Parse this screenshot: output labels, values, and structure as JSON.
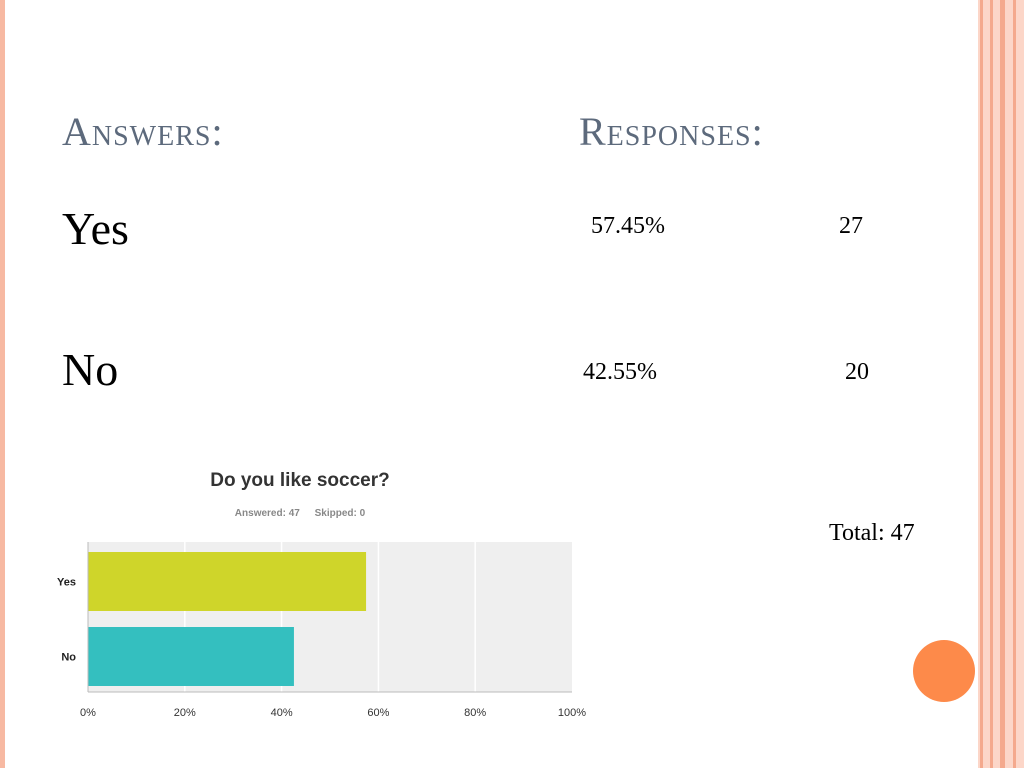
{
  "headings": {
    "answers": "Answers:",
    "responses": "Responses:"
  },
  "rows": [
    {
      "answer": "Yes",
      "percent": "57.45%",
      "count": "27"
    },
    {
      "answer": "No",
      "percent": "42.55%",
      "count": "20"
    }
  ],
  "total": "Total: 47",
  "colors": {
    "heading": "#5d6a7c",
    "accent_orange": "#fd8a4a",
    "border_peach": "#fcd6c8",
    "border_stripe": "#f4a98d"
  },
  "chart_data": {
    "type": "bar",
    "orientation": "horizontal",
    "title": "Do you like soccer?",
    "meta": {
      "answered": "Answered: 47",
      "skipped": "Skipped: 0"
    },
    "categories": [
      "Yes",
      "No"
    ],
    "values": [
      57.45,
      42.55
    ],
    "colors": [
      "#cfd52a",
      "#34bfbf"
    ],
    "xlim": [
      0,
      100
    ],
    "ticks": [
      "0%",
      "20%",
      "40%",
      "60%",
      "80%",
      "100%"
    ],
    "grid": true,
    "legend": "none"
  }
}
